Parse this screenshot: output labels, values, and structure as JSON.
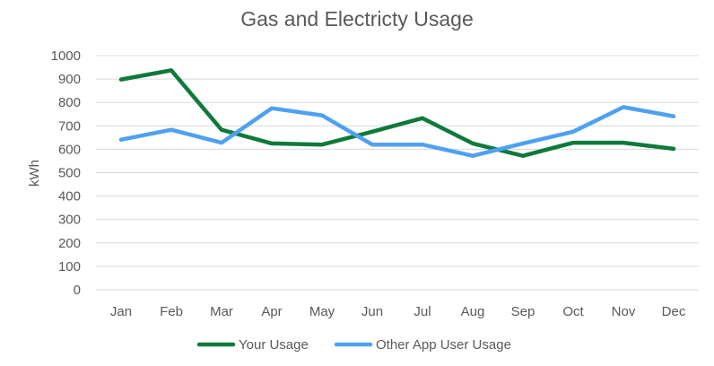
{
  "chart_data": {
    "type": "line",
    "title": "Gas and Electricty Usage",
    "xlabel": "",
    "ylabel": "kWh",
    "categories": [
      "Jan",
      "Feb",
      "Mar",
      "Apr",
      "May",
      "Jun",
      "Jul",
      "Aug",
      "Sep",
      "Oct",
      "Nov",
      "Dec"
    ],
    "ylim": [
      0,
      1000
    ],
    "yticks": [
      0,
      100,
      200,
      300,
      400,
      500,
      600,
      700,
      800,
      900,
      1000
    ],
    "grid": true,
    "legend_position": "bottom",
    "series": [
      {
        "name": "Your Usage",
        "color": "#0e7a3a",
        "values": [
          898,
          937,
          683,
          625,
          620,
          675,
          733,
          625,
          572,
          628,
          628,
          602
        ]
      },
      {
        "name": "Other App User Usage",
        "color": "#4ea1f0",
        "values": [
          641,
          683,
          628,
          775,
          745,
          620,
          620,
          572,
          625,
          675,
          780,
          741
        ]
      }
    ]
  }
}
